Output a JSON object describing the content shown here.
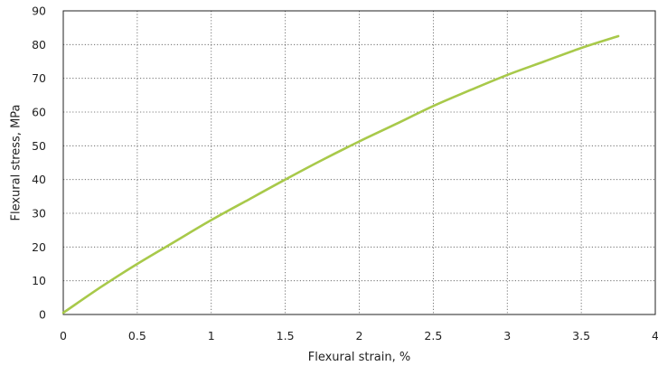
{
  "chart_data": {
    "type": "line",
    "title": "",
    "xlabel": "Flexural strain, %",
    "ylabel": "Flexural stress, MPa",
    "xlim": [
      0,
      4
    ],
    "ylim": [
      0,
      90
    ],
    "xticks": [
      "0",
      "0.5",
      "1",
      "1.5",
      "2",
      "2.5",
      "3",
      "3.5",
      "4"
    ],
    "yticks": [
      "0",
      "10",
      "20",
      "30",
      "40",
      "50",
      "60",
      "70",
      "80",
      "90"
    ],
    "grid": true,
    "series": [
      {
        "color": "#a8c94a",
        "x": [
          0,
          0.25,
          0.5,
          0.75,
          1.0,
          1.25,
          1.5,
          1.75,
          2.0,
          2.25,
          2.5,
          2.75,
          3.0,
          3.25,
          3.5,
          3.75
        ],
        "y": [
          0.5,
          8.0,
          15.0,
          21.5,
          28.0,
          34.0,
          40.0,
          45.8,
          51.3,
          56.5,
          61.8,
          66.5,
          71.0,
          75.0,
          79.0,
          82.5
        ]
      }
    ]
  }
}
